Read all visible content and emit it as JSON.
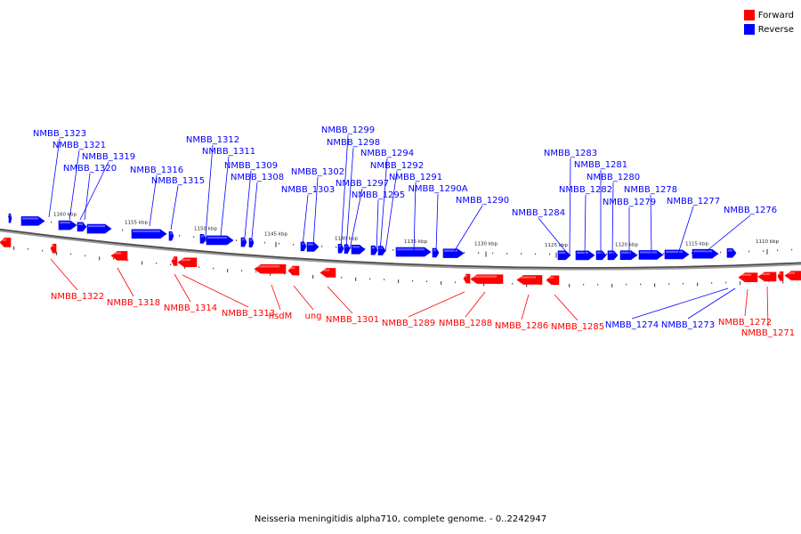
{
  "legend": [
    {
      "label": "Forward",
      "color": "#ff0000"
    },
    {
      "label": "Reverse",
      "color": "#0000ff"
    }
  ],
  "caption": "Neisseria meningitidis alpha710, complete genome. - 0..2242947",
  "ticks": [
    "1160 kbp",
    "1155 kbp",
    "1150 kbp",
    "1145 kbp",
    "1140 kbp",
    "1135 kbp",
    "1130 kbp",
    "1125 kbp",
    "1120 kbp",
    "1115 kbp",
    "1110 kbp"
  ],
  "reverse_genes": [
    "NMBB_1323",
    "NMBB_1321",
    "NMBB_1319",
    "NMBB_1320",
    "NMBB_1316",
    "NMBB_1315",
    "NMBB_1312",
    "NMBB_1311",
    "NMBB_1309",
    "NMBB_1308",
    "NMBB_1302",
    "NMBB_1303",
    "NMBB_1299",
    "NMBB_1298",
    "NMBB_1297",
    "NMBB_1295",
    "NMBB_1294",
    "NMBB_1292",
    "NMBB_1291",
    "NMBB_1290A",
    "NMBB_1290",
    "NMBB_1284",
    "NMBB_1283",
    "NMBB_1281",
    "NMBB_1282",
    "NMBB_1280",
    "NMBB_1279",
    "NMBB_1278",
    "NMBB_1277",
    "NMBB_1276",
    "NMBB_1274",
    "NMBB_1273"
  ],
  "forward_genes": [
    "NMBB_1322",
    "NMBB_1318",
    "NMBB_1314",
    "NMBB_1313",
    "hsdM",
    "ung",
    "NMBB_1301",
    "NMBB_1289",
    "NMBB_1288",
    "NMBB_1286",
    "NMBB_1285",
    "NMBB_1272",
    "NMBB_1271"
  ]
}
